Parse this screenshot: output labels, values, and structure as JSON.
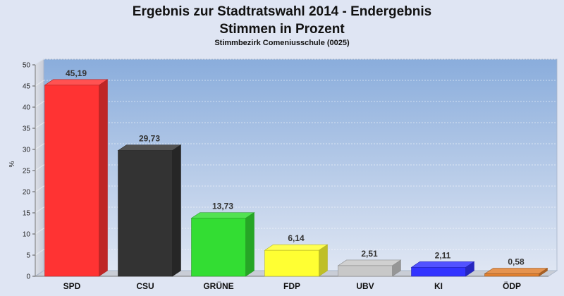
{
  "chart_data": {
    "type": "bar",
    "title": "Ergebnis zur Stadtratswahl 2014 - Endergebnis",
    "title_line2": "Stimmen in Prozent",
    "subtitle": "Stimmbezirk Comeniusschule (0025)",
    "xlabel": "",
    "ylabel": "%",
    "ylim": [
      0,
      50
    ],
    "yticks": [
      0,
      5,
      10,
      15,
      20,
      25,
      30,
      35,
      40,
      45,
      50
    ],
    "grid": true,
    "legend": "none",
    "categories": [
      "SPD",
      "CSU",
      "GRÜNE",
      "FDP",
      "UBV",
      "KI",
      "ÖDP"
    ],
    "values": [
      45.19,
      29.73,
      13.73,
      6.14,
      2.51,
      2.11,
      0.58
    ],
    "value_labels": [
      "45,19",
      "29,73",
      "13,73",
      "6,14",
      "2,51",
      "2,11",
      "0,58"
    ],
    "colors": [
      "#ff3333",
      "#333333",
      "#33dd33",
      "#ffff33",
      "#c8c8c8",
      "#3333ff",
      "#e08030"
    ]
  }
}
